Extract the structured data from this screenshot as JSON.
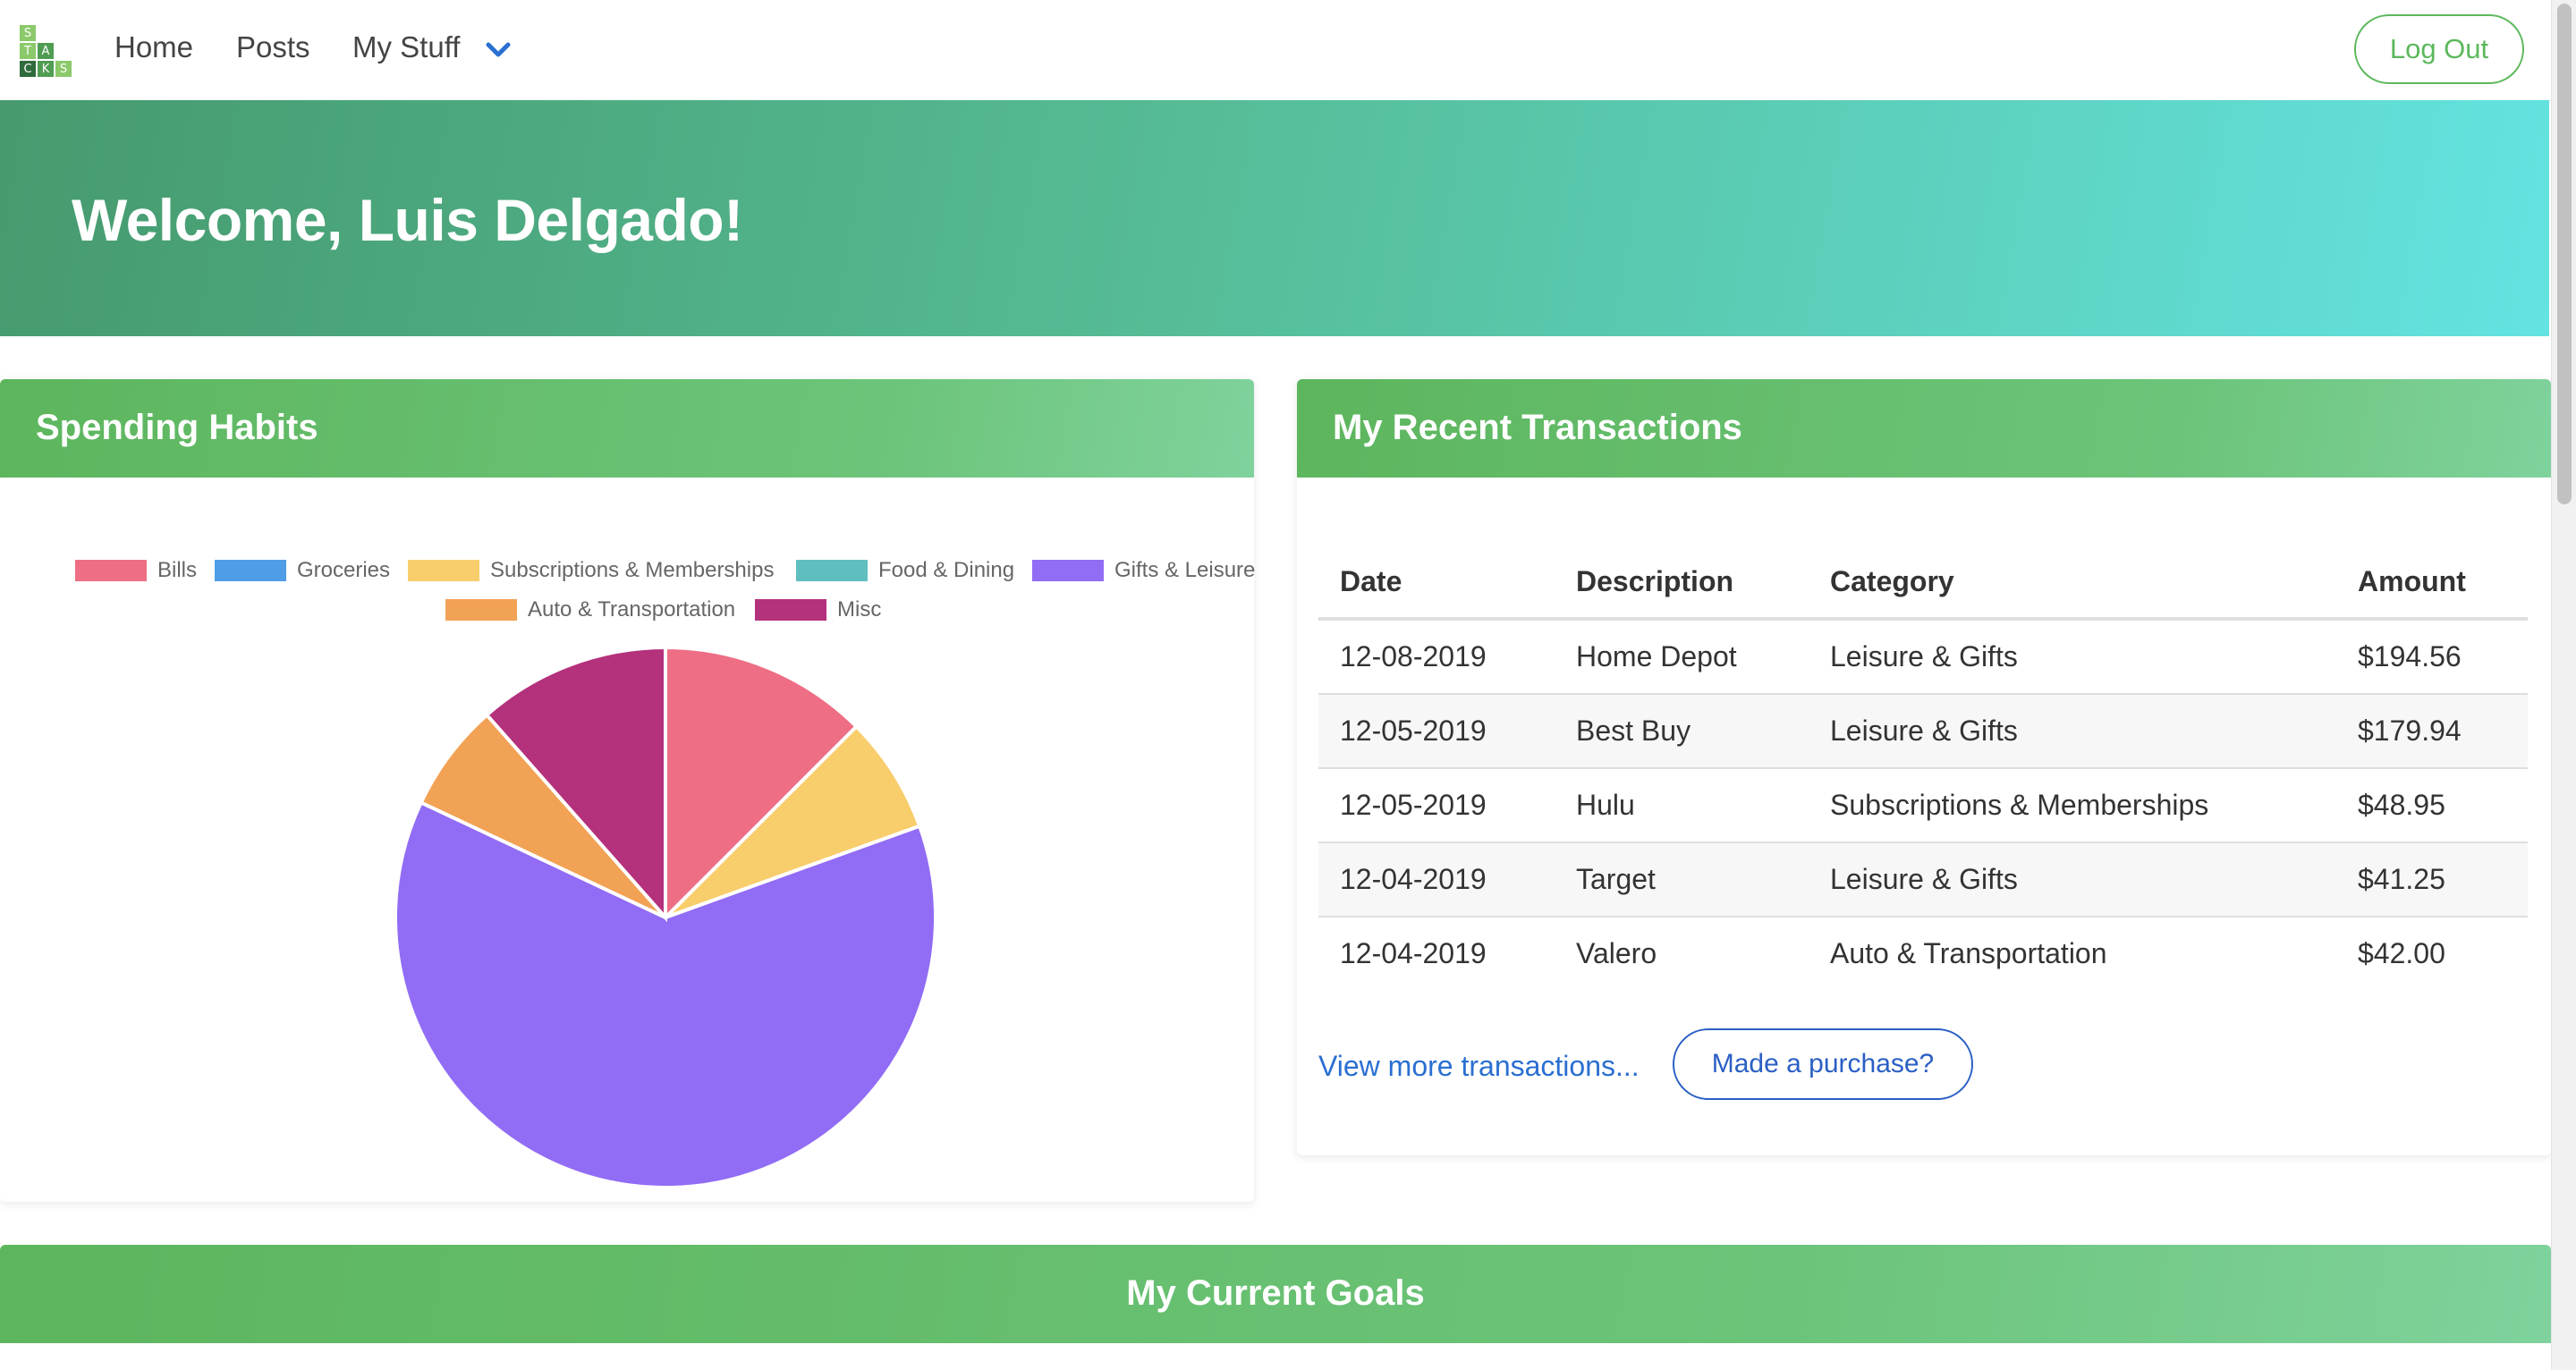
{
  "nav": {
    "logo_letters": [
      "S",
      "",
      "",
      "T",
      "A",
      "",
      "C",
      "K",
      "S"
    ],
    "links": [
      "Home",
      "Posts",
      "My Stuff"
    ],
    "dropdown_icon": "chevron-down-icon",
    "logout_label": "Log Out"
  },
  "hero": {
    "title": "Welcome, Luis Delgado!"
  },
  "spending": {
    "title": "Spending Habits",
    "legend": [
      {
        "label": "Bills",
        "color": "#ee6e85"
      },
      {
        "label": "Groceries",
        "color": "#4f9de6"
      },
      {
        "label": "Subscriptions & Memberships",
        "color": "#f8cd6b"
      },
      {
        "label": "Food & Dining",
        "color": "#5fbfbf"
      },
      {
        "label": "Gifts & Leisure",
        "color": "#916cf5"
      },
      {
        "label": "Auto & Transportation",
        "color": "#f2a255"
      },
      {
        "label": "Misc",
        "color": "#b4317c"
      }
    ]
  },
  "chart_data": {
    "type": "pie",
    "categories": [
      "Bills",
      "Groceries",
      "Subscriptions & Memberships",
      "Food & Dining",
      "Gifts & Leisure",
      "Auto & Transportation",
      "Misc"
    ],
    "values": [
      12.5,
      0,
      7.0,
      0,
      62.5,
      6.5,
      11.5
    ],
    "colors": [
      "#ee6e85",
      "#4f9de6",
      "#f8cd6b",
      "#5fbfbf",
      "#916cf5",
      "#f2a255",
      "#b4317c"
    ],
    "legend_position": "top"
  },
  "transactions": {
    "title": "My Recent Transactions",
    "headers": [
      "Date",
      "Description",
      "Category",
      "Amount"
    ],
    "rows": [
      [
        "12-08-2019",
        "Home Depot",
        "Leisure & Gifts",
        "$194.56"
      ],
      [
        "12-05-2019",
        "Best Buy",
        "Leisure & Gifts",
        "$179.94"
      ],
      [
        "12-05-2019",
        "Hulu",
        "Subscriptions & Memberships",
        "$48.95"
      ],
      [
        "12-04-2019",
        "Target",
        "Leisure & Gifts",
        "$41.25"
      ],
      [
        "12-04-2019",
        "Valero",
        "Auto & Transportation",
        "$42.00"
      ]
    ],
    "view_more": "View more transactions...",
    "purchase_button": "Made a purchase?"
  },
  "goals": {
    "title": "My Current Goals"
  }
}
